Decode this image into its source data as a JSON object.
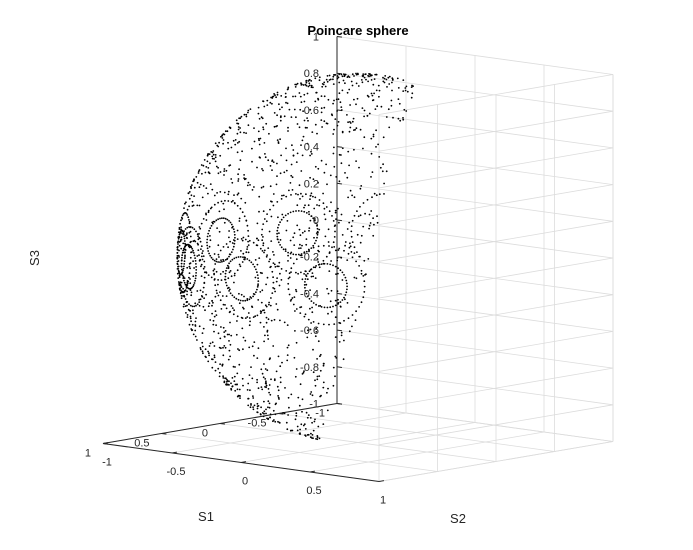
{
  "chart_data": {
    "type": "scatter",
    "title": "Poincare sphere",
    "xlabel": "S1",
    "ylabel": "S2",
    "zlabel": "S3",
    "xlim": [
      -1,
      1
    ],
    "ylim": [
      -1,
      1
    ],
    "zlim": [
      -1,
      1
    ],
    "xticks": [
      "-1",
      "-0.5",
      "0",
      "0.5",
      "1"
    ],
    "yticks": [
      "-1",
      "-0.5",
      "0",
      "0.5",
      "1"
    ],
    "zticks": [
      "-1",
      "-0.8",
      "-0.6",
      "-0.4",
      "-0.2",
      "0",
      "0.2",
      "0.4",
      "0.6",
      "0.8",
      "1"
    ],
    "grid": true,
    "marker_color": "#000000",
    "surface": "unit-sphere",
    "sphere_radius": 1
  }
}
